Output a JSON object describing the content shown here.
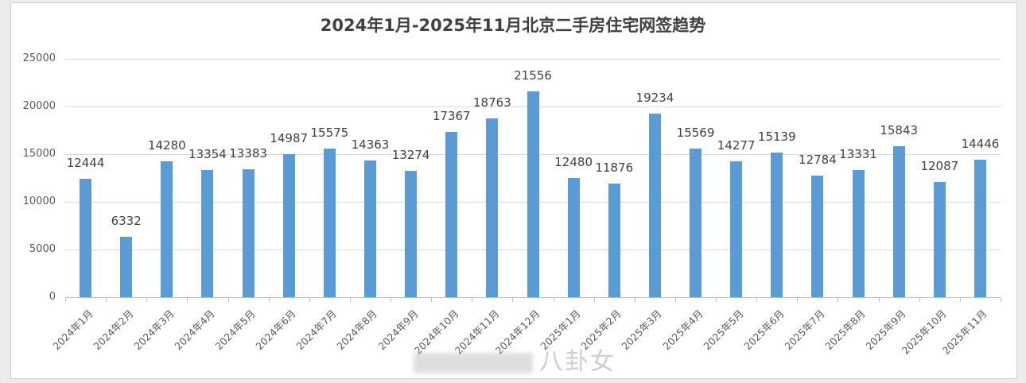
{
  "chart_data": {
    "type": "bar",
    "title": "2024年1月-2025年11月北京二手房住宅网签趋势",
    "xlabel": "",
    "ylabel": "",
    "ylim": [
      0,
      25000
    ],
    "yticks": [
      0,
      5000,
      10000,
      15000,
      20000,
      25000
    ],
    "grid": true,
    "legend": null,
    "bar_color": "#5b9bd5",
    "categories": [
      "2024年1月",
      "2024年2月",
      "2024年3月",
      "2024年4月",
      "2024年5月",
      "2024年6月",
      "2024年7月",
      "2024年8月",
      "2024年9月",
      "2024年10月",
      "2024年11月",
      "2024年12月",
      "2025年1月",
      "2025年2月",
      "2025年3月",
      "2025年4月",
      "2025年5月",
      "2025年6月",
      "2025年7月",
      "2025年8月",
      "2025年9月",
      "2025年10月",
      "2025年11月"
    ],
    "values": [
      12444,
      6332,
      14280,
      13354,
      13383,
      14987,
      15575,
      14363,
      13274,
      17367,
      18763,
      21556,
      12480,
      11876,
      19234,
      15569,
      14277,
      15139,
      12784,
      13331,
      15843,
      12087,
      14446
    ]
  },
  "yticks_labels": [
    "0",
    "5000",
    "10000",
    "15000",
    "20000",
    "25000"
  ],
  "watermark": "八卦女"
}
